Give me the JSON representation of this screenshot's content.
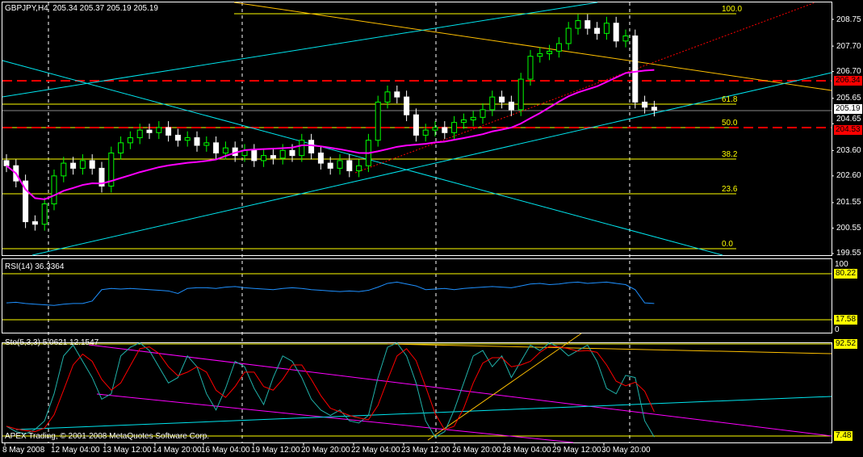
{
  "header": {
    "symbol": "GBPJPY,H4",
    "ohlc": "205.34 205.37 205.19 205.19"
  },
  "colors": {
    "bull": "#00ff00",
    "bear": "#ffffff",
    "ma": "#ff00ff",
    "rsi": "#1e90ff",
    "level": "#ffff00",
    "stoch_main": "#20b2aa",
    "stoch_signal": "#ff0000",
    "grid": "#ffffff"
  },
  "price_axis": {
    "ticks": [
      "208.75",
      "207.70",
      "206.70",
      "205.65",
      "204.65",
      "203.60",
      "202.60",
      "201.55",
      "200.55",
      "199.55"
    ],
    "tags": {
      "resistance": "206.34",
      "bid": "205.19",
      "support": "204.53"
    }
  },
  "fib_levels": [
    "100.0",
    "61.8",
    "50.0",
    "38.2",
    "23.6",
    "0.0"
  ],
  "rsi": {
    "label": "RSI(14) 36.3364",
    "axis": {
      "top": "100",
      "bottom": "0",
      "high": "80.22",
      "low": "17.58"
    },
    "values": [
      37,
      38,
      36,
      35,
      34,
      33,
      35,
      36,
      36,
      40,
      58,
      60,
      59,
      60,
      59,
      58,
      57,
      56,
      52,
      60,
      61,
      61,
      60,
      62,
      63,
      61,
      60,
      59,
      58,
      60,
      61,
      60,
      58,
      57,
      56,
      55,
      56,
      55,
      57,
      62,
      68,
      70,
      67,
      64,
      58,
      59,
      60,
      58,
      60,
      61,
      62,
      63,
      62,
      61,
      64,
      67,
      68,
      66,
      67,
      69,
      70,
      68,
      69,
      70,
      68,
      66,
      58,
      37,
      36
    ]
  },
  "stoch": {
    "label": "Sto(5,3,3) 5.0621 12.1547",
    "axis": {
      "high": "92.52",
      "low": "7.48"
    },
    "values": [
      15,
      10,
      8,
      12,
      20,
      45,
      80,
      90,
      75,
      60,
      40,
      45,
      80,
      88,
      92,
      85,
      70,
      55,
      60,
      80,
      70,
      45,
      30,
      50,
      75,
      70,
      50,
      35,
      60,
      80,
      75,
      60,
      40,
      30,
      25,
      30,
      20,
      18,
      25,
      60,
      88,
      92,
      80,
      55,
      20,
      5,
      10,
      30,
      55,
      80,
      85,
      70,
      80,
      60,
      75,
      90,
      85,
      92,
      88,
      80,
      85,
      90,
      75,
      50,
      45,
      62,
      60,
      20,
      5
    ]
  },
  "candles": {
    "closes": [
      203.0,
      202.4,
      200.8,
      200.7,
      201.5,
      202.6,
      203.1,
      202.9,
      203.2,
      202.9,
      202.2,
      203.5,
      203.9,
      204.1,
      204.4,
      204.3,
      204.5,
      204.2,
      204.0,
      204.1,
      203.8,
      203.9,
      203.5,
      203.7,
      203.4,
      203.6,
      203.2,
      203.4,
      203.3,
      203.6,
      203.4,
      204.0,
      203.5,
      203.1,
      202.9,
      203.2,
      202.8,
      203.0,
      204.0,
      205.5,
      205.9,
      205.7,
      205.0,
      204.2,
      204.4,
      204.5,
      204.3,
      204.7,
      204.8,
      204.9,
      205.2,
      205.7,
      205.5,
      205.2,
      206.4,
      207.3,
      207.4,
      207.5,
      207.8,
      208.4,
      208.7,
      208.4,
      208.2,
      208.6,
      207.9,
      208.1,
      205.5,
      205.3,
      205.19
    ]
  },
  "time_axis": [
    "8 May 2008",
    "12 May 04:00",
    "13 May 12:00",
    "14 May 20:00",
    "16 May 04:00",
    "19 May 12:00",
    "20 May 20:00",
    "22 May 04:00",
    "23 May 12:00",
    "26 May 20:00",
    "28 May 04:00",
    "29 May 12:00",
    "30 May 20:00"
  ],
  "copyright": "APEX Trading, © 2001-2008 MetaQuotes Software Corp."
}
